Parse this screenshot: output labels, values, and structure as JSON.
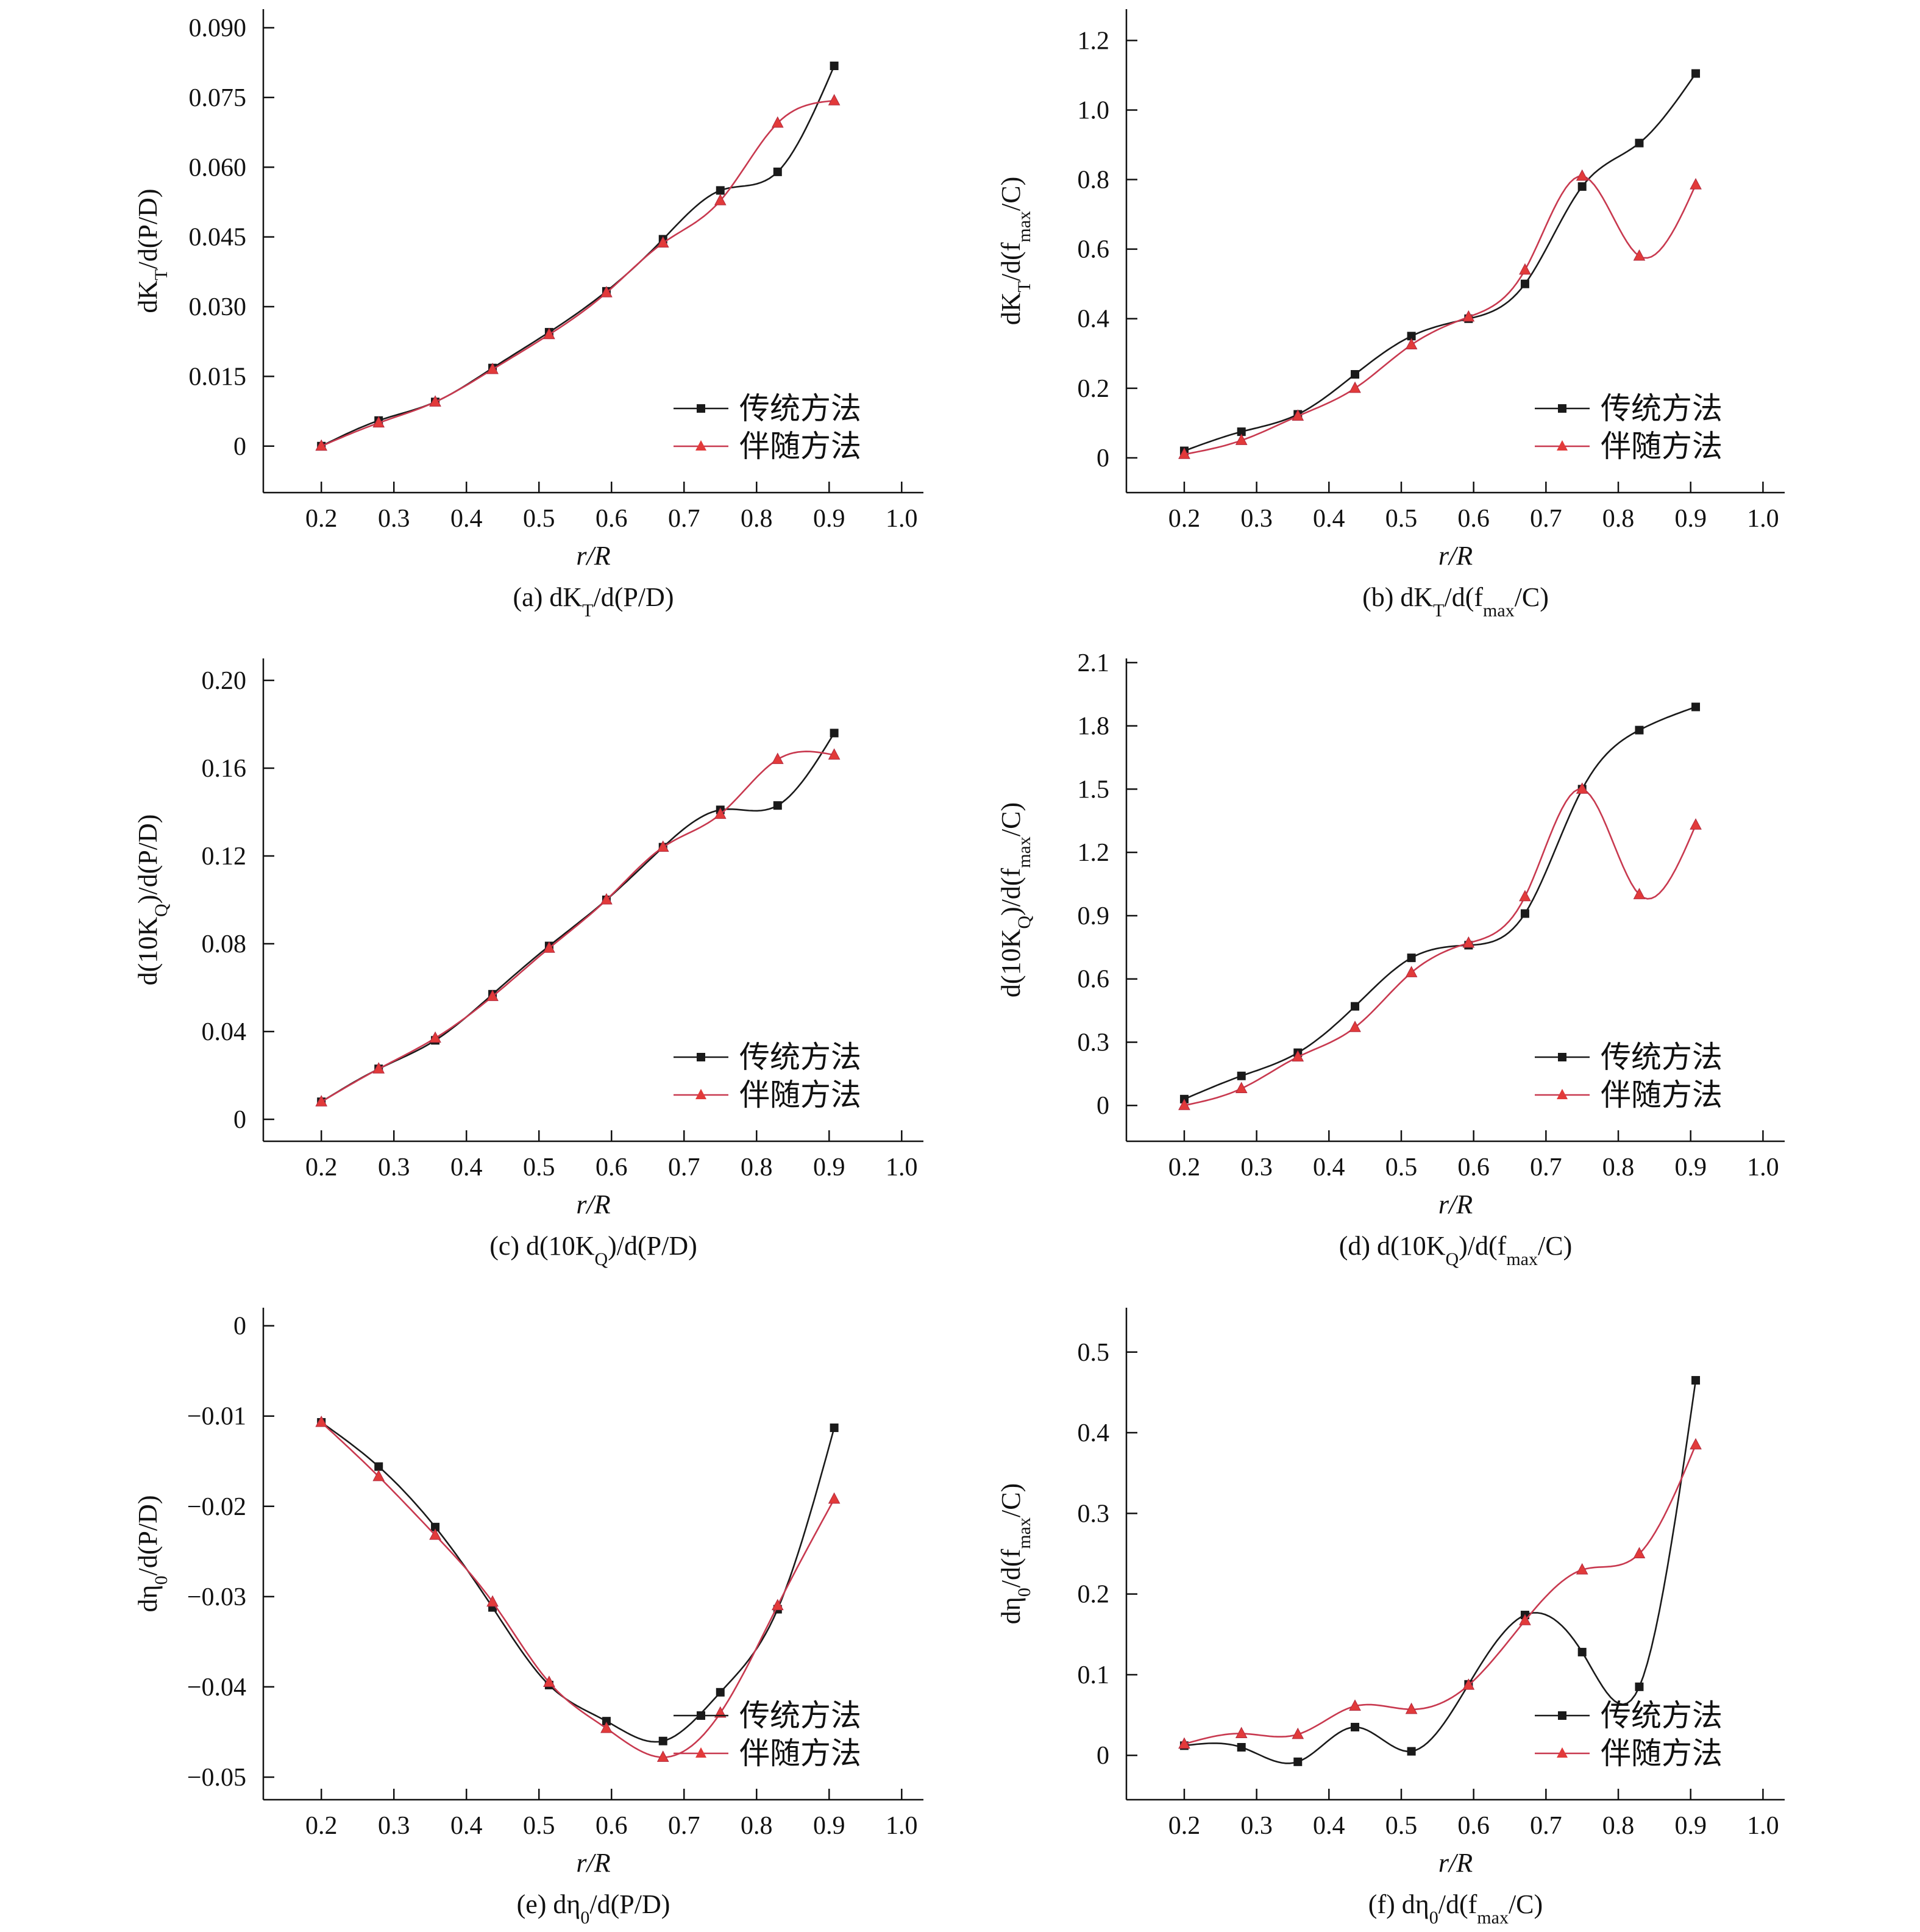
{
  "colors": {
    "series1": "#1a1a1a",
    "series2": "#c8394f",
    "marker2": "#e23a3a",
    "axis": "#111111"
  },
  "legend": {
    "placement": "bottom-right"
  },
  "chart_data": [
    {
      "type": "line",
      "caption": "(a) dK_T/d(P/D)",
      "xlabel": "r/R",
      "ylabel": "dK_T/d(P/D)",
      "xlim": [
        0.12,
        1.03
      ],
      "ylim": [
        -0.01,
        0.094
      ],
      "xticks": [
        "0.2",
        "0.3",
        "0.4",
        "0.5",
        "0.6",
        "0.7",
        "0.8",
        "0.9",
        "1.0"
      ],
      "yticks": [
        "0",
        "0.015",
        "0.030",
        "0.045",
        "0.060",
        "0.075",
        "0.090"
      ],
      "x": [
        0.2,
        0.279,
        0.357,
        0.436,
        0.514,
        0.593,
        0.671,
        0.75,
        0.829,
        0.907
      ],
      "series": [
        {
          "name": "传统方法",
          "marker": "square",
          "values": [
            0.0,
            0.0055,
            0.0095,
            0.0168,
            0.0245,
            0.0333,
            0.0445,
            0.055,
            0.059,
            0.0818
          ]
        },
        {
          "name": "伴随方法",
          "marker": "triangle",
          "values": [
            0.0,
            0.005,
            0.0095,
            0.0165,
            0.024,
            0.033,
            0.0437,
            0.0528,
            0.0695,
            0.0743
          ]
        }
      ]
    },
    {
      "type": "line",
      "caption": "(b) dK_T/d(f_max/C)",
      "xlabel": "r/R",
      "ylabel": "dK_T/d(f_max/C)",
      "xlim": [
        0.12,
        1.03
      ],
      "ylim": [
        -0.1,
        1.29
      ],
      "xticks": [
        "0.2",
        "0.3",
        "0.4",
        "0.5",
        "0.6",
        "0.7",
        "0.8",
        "0.9",
        "1.0"
      ],
      "yticks": [
        "0",
        "0.2",
        "0.4",
        "0.6",
        "0.8",
        "1.0",
        "1.2"
      ],
      "x": [
        0.2,
        0.279,
        0.357,
        0.436,
        0.514,
        0.593,
        0.671,
        0.75,
        0.829,
        0.907
      ],
      "series": [
        {
          "name": "传统方法",
          "marker": "square",
          "values": [
            0.02,
            0.075,
            0.125,
            0.24,
            0.35,
            0.4,
            0.5,
            0.78,
            0.905,
            1.105
          ]
        },
        {
          "name": "伴随方法",
          "marker": "triangle",
          "values": [
            0.01,
            0.05,
            0.12,
            0.2,
            0.325,
            0.405,
            0.54,
            0.81,
            0.58,
            0.785
          ]
        }
      ]
    },
    {
      "type": "line",
      "caption": "(c) d(10K_Q)/d(P/D)",
      "xlabel": "r/R",
      "ylabel": "d(10K_Q)/d(P/D)",
      "xlim": [
        0.12,
        1.03
      ],
      "ylim": [
        -0.01,
        0.21
      ],
      "xticks": [
        "0.2",
        "0.3",
        "0.4",
        "0.5",
        "0.6",
        "0.7",
        "0.8",
        "0.9",
        "1.0"
      ],
      "yticks": [
        "0",
        "0.04",
        "0.08",
        "0.12",
        "0.16",
        "0.20"
      ],
      "x": [
        0.2,
        0.279,
        0.357,
        0.436,
        0.514,
        0.593,
        0.671,
        0.75,
        0.829,
        0.907
      ],
      "series": [
        {
          "name": "传统方法",
          "marker": "square",
          "values": [
            0.008,
            0.023,
            0.036,
            0.057,
            0.079,
            0.1,
            0.124,
            0.141,
            0.143,
            0.176
          ]
        },
        {
          "name": "伴随方法",
          "marker": "triangle",
          "values": [
            0.008,
            0.023,
            0.037,
            0.056,
            0.078,
            0.1,
            0.124,
            0.139,
            0.164,
            0.166
          ]
        }
      ]
    },
    {
      "type": "line",
      "caption": "(d) d(10K_Q)/d(f_max/C)",
      "xlabel": "r/R",
      "ylabel": "d(10K_Q)/d(f_max/C)",
      "xlim": [
        0.12,
        1.03
      ],
      "ylim": [
        -0.17,
        2.12
      ],
      "xticks": [
        "0.2",
        "0.3",
        "0.4",
        "0.5",
        "0.6",
        "0.7",
        "0.8",
        "0.9",
        "1.0"
      ],
      "yticks": [
        "0",
        "0.3",
        "0.6",
        "0.9",
        "1.2",
        "1.5",
        "1.8",
        "2.1"
      ],
      "x": [
        0.2,
        0.279,
        0.357,
        0.436,
        0.514,
        0.593,
        0.671,
        0.75,
        0.829,
        0.907
      ],
      "series": [
        {
          "name": "传统方法",
          "marker": "square",
          "values": [
            0.03,
            0.14,
            0.25,
            0.47,
            0.7,
            0.76,
            0.91,
            1.5,
            1.78,
            1.89
          ]
        },
        {
          "name": "伴随方法",
          "marker": "triangle",
          "values": [
            0.0,
            0.08,
            0.23,
            0.37,
            0.63,
            0.77,
            0.99,
            1.5,
            1.0,
            1.33
          ]
        }
      ]
    },
    {
      "type": "line",
      "caption": "(e) dη_0/d(P/D)",
      "xlabel": "r/R",
      "ylabel": "dη_0/d(P/D)",
      "xlim": [
        0.12,
        1.03
      ],
      "ylim": [
        -0.0525,
        0.002
      ],
      "xticks": [
        "0.2",
        "0.3",
        "0.4",
        "0.5",
        "0.6",
        "0.7",
        "0.8",
        "0.9",
        "1.0"
      ],
      "yticks": [
        "0",
        "−0.01",
        "−0.02",
        "−0.03",
        "−0.04",
        "−0.05"
      ],
      "x": [
        0.2,
        0.279,
        0.357,
        0.436,
        0.514,
        0.593,
        0.671,
        0.75,
        0.829,
        0.907
      ],
      "series": [
        {
          "name": "传统方法",
          "marker": "square",
          "values": [
            -0.0107,
            -0.0156,
            -0.0223,
            -0.0312,
            -0.0398,
            -0.0438,
            -0.046,
            -0.0406,
            -0.0314,
            -0.0113
          ]
        },
        {
          "name": "伴随方法",
          "marker": "triangle",
          "values": [
            -0.0107,
            -0.0167,
            -0.0232,
            -0.0306,
            -0.0395,
            -0.0446,
            -0.0478,
            -0.0429,
            -0.031,
            -0.0192
          ]
        }
      ]
    },
    {
      "type": "line",
      "caption": "(f) dη_0/d(f_max/C)",
      "xlabel": "r/R",
      "ylabel": "dη_0/d(f_max/C)",
      "xlim": [
        0.12,
        1.03
      ],
      "ylim": [
        -0.055,
        0.555
      ],
      "xticks": [
        "0.2",
        "0.3",
        "0.4",
        "0.5",
        "0.6",
        "0.7",
        "0.8",
        "0.9",
        "1.0"
      ],
      "yticks": [
        "0",
        "0.1",
        "0.2",
        "0.3",
        "0.4",
        "0.5"
      ],
      "x": [
        0.2,
        0.279,
        0.357,
        0.436,
        0.514,
        0.593,
        0.671,
        0.75,
        0.829,
        0.907
      ],
      "series": [
        {
          "name": "传统方法",
          "marker": "square",
          "values": [
            0.012,
            0.01,
            -0.008,
            0.035,
            0.005,
            0.088,
            0.174,
            0.128,
            0.085,
            0.465
          ]
        },
        {
          "name": "伴随方法",
          "marker": "triangle",
          "values": [
            0.014,
            0.027,
            0.026,
            0.061,
            0.057,
            0.087,
            0.167,
            0.23,
            0.25,
            0.385
          ]
        }
      ]
    }
  ]
}
